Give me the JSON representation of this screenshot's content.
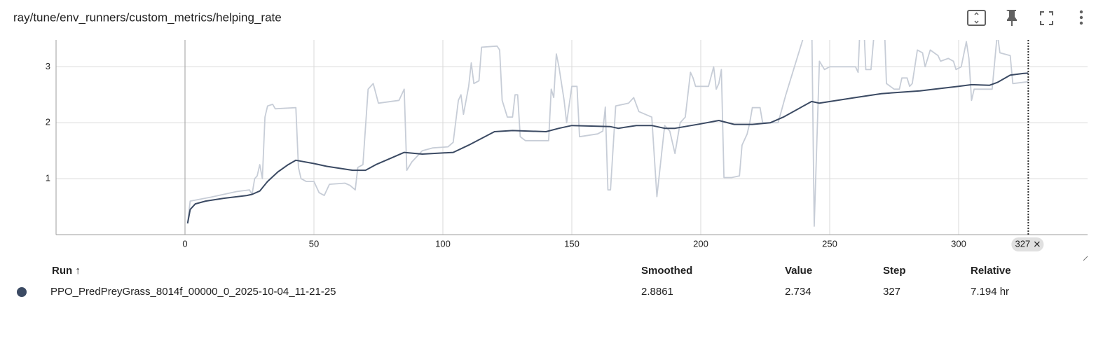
{
  "header": {
    "title": "ray/tune/env_runners/custom_metrics/helping_rate"
  },
  "chart_data": {
    "type": "line",
    "xlim": [
      -50,
      350
    ],
    "xticks": [
      0,
      50,
      100,
      150,
      200,
      250,
      300
    ],
    "ylim": [
      0,
      3.48
    ],
    "yticks": [
      1,
      2,
      3
    ],
    "grid": true,
    "cursor": 327,
    "series": [
      {
        "color": "#c7cdd7",
        "x": [
          1,
          2,
          10,
          20,
          25,
          26,
          27,
          28,
          29,
          30,
          31,
          32,
          34,
          35,
          43,
          44,
          45,
          47,
          50,
          52,
          54,
          56,
          62,
          64,
          66,
          67,
          69,
          71,
          73,
          75,
          83,
          85,
          86,
          88,
          90,
          92,
          96,
          102,
          104,
          106,
          107,
          108,
          110,
          111,
          112,
          114,
          115,
          121,
          122,
          123,
          125,
          127,
          128,
          129,
          130,
          132,
          141,
          142,
          143,
          144,
          145,
          147,
          148,
          150,
          152,
          153,
          160,
          162,
          163,
          164,
          165,
          167,
          172,
          174,
          176,
          181,
          183,
          184,
          186,
          188,
          190,
          192,
          194,
          196,
          197,
          198,
          203,
          205,
          206,
          207,
          208,
          209,
          212,
          215,
          216,
          218,
          219,
          220,
          223,
          224,
          230,
          233,
          243,
          244,
          246,
          248,
          250,
          260,
          261,
          262,
          263,
          264,
          266,
          268,
          271,
          272,
          275,
          277,
          278,
          280,
          281,
          282,
          284,
          286,
          287,
          289,
          292,
          293,
          296,
          298,
          299,
          301,
          303,
          304,
          305,
          306,
          313,
          314,
          315,
          316,
          320,
          321,
          327
        ],
        "values": [
          0.2,
          0.6,
          0.67,
          0.77,
          0.8,
          0.72,
          1.0,
          1.05,
          1.25,
          1.0,
          2.1,
          2.3,
          2.33,
          2.25,
          2.27,
          1.2,
          1.0,
          0.95,
          0.95,
          0.75,
          0.7,
          0.9,
          0.92,
          0.88,
          0.8,
          1.2,
          1.25,
          2.6,
          2.7,
          2.35,
          2.4,
          2.6,
          1.15,
          1.3,
          1.4,
          1.5,
          1.55,
          1.57,
          1.65,
          2.4,
          2.5,
          2.15,
          2.65,
          3.07,
          2.7,
          2.75,
          3.35,
          3.37,
          3.3,
          2.4,
          2.1,
          2.1,
          2.5,
          2.5,
          1.75,
          1.68,
          1.68,
          2.6,
          2.45,
          3.23,
          3.0,
          2.4,
          2.0,
          2.65,
          2.65,
          1.75,
          1.8,
          1.85,
          2.28,
          0.8,
          0.8,
          2.3,
          2.35,
          2.45,
          2.2,
          2.1,
          0.68,
          1.1,
          1.95,
          1.85,
          1.45,
          2.0,
          2.1,
          2.9,
          2.8,
          2.65,
          2.65,
          3.0,
          2.6,
          2.7,
          2.95,
          1.02,
          1.02,
          1.05,
          1.6,
          1.8,
          2.0,
          2.27,
          2.27,
          2.0,
          2.0,
          2.5,
          4.0,
          0.15,
          3.1,
          2.95,
          3.0,
          3.0,
          2.9,
          4.0,
          4.0,
          2.95,
          2.95,
          4.0,
          4.0,
          2.7,
          2.6,
          2.6,
          2.8,
          2.8,
          2.65,
          2.7,
          3.3,
          3.25,
          3.0,
          3.3,
          3.2,
          3.1,
          3.15,
          3.1,
          2.95,
          3.0,
          3.45,
          3.15,
          2.4,
          2.6,
          2.6,
          3.1,
          3.6,
          3.25,
          3.2,
          2.7,
          2.734
        ]
      },
      {
        "color": "#3b4a63",
        "x": [
          1,
          2,
          4,
          8,
          15,
          24,
          26,
          29,
          32,
          36,
          40,
          43,
          50,
          55,
          65,
          70,
          74,
          80,
          85,
          92,
          104,
          110,
          115,
          120,
          127,
          140,
          145,
          150,
          165,
          168,
          175,
          181,
          186,
          190,
          200,
          207,
          213,
          220,
          227,
          232,
          243,
          246,
          260,
          270,
          285,
          300,
          305,
          312,
          315,
          320,
          325,
          327
        ],
        "values": [
          0.2,
          0.45,
          0.55,
          0.6,
          0.65,
          0.7,
          0.72,
          0.78,
          0.95,
          1.12,
          1.25,
          1.33,
          1.27,
          1.22,
          1.15,
          1.15,
          1.25,
          1.37,
          1.47,
          1.44,
          1.47,
          1.6,
          1.72,
          1.84,
          1.86,
          1.84,
          1.9,
          1.95,
          1.93,
          1.9,
          1.95,
          1.95,
          1.9,
          1.9,
          1.98,
          2.04,
          1.97,
          1.97,
          2.0,
          2.1,
          2.38,
          2.35,
          2.45,
          2.52,
          2.57,
          2.65,
          2.68,
          2.67,
          2.72,
          2.85,
          2.88,
          2.8861
        ]
      }
    ]
  },
  "table": {
    "headers": [
      "Run ↑",
      "Smoothed",
      "Value",
      "Step",
      "Relative"
    ],
    "rows": [
      [
        "PPO_PredPreyGrass_8014f_00000_0_2025-10-04_11-21-25",
        "2.8861",
        "2.734",
        "327",
        "7.194 hr"
      ]
    ]
  }
}
